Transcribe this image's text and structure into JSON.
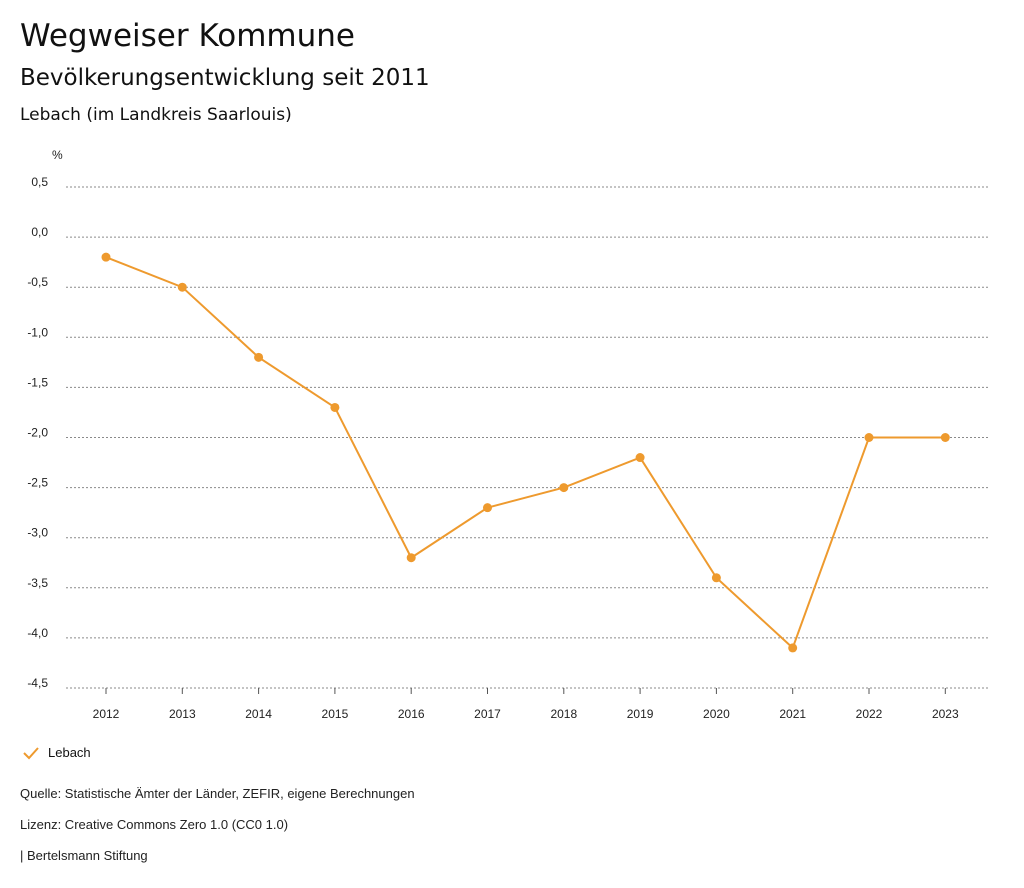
{
  "header": {
    "title": "Wegweiser Kommune",
    "subtitle": "Bevölkerungsentwicklung seit 2011",
    "region": "Lebach (im Landkreis Saarlouis)"
  },
  "legend": {
    "label": "Lebach",
    "color": "#ee9a2e"
  },
  "footer": {
    "source": "Quelle: Statistische Ämter der Länder, ZEFIR, eigene Berechnungen",
    "license": "Lizenz: Creative Commons Zero 1.0 (CC0 1.0)",
    "publisher": "| Bertelsmann Stiftung"
  },
  "chart_data": {
    "type": "line",
    "title": "Bevölkerungsentwicklung seit 2011",
    "ylabel": "%",
    "xlabel": "",
    "categories": [
      "2012",
      "2013",
      "2014",
      "2015",
      "2016",
      "2017",
      "2018",
      "2019",
      "2020",
      "2021",
      "2022",
      "2023"
    ],
    "series": [
      {
        "name": "Lebach",
        "values": [
          -0.2,
          -0.5,
          -1.2,
          -1.7,
          -3.2,
          -2.7,
          -2.5,
          -2.2,
          -3.4,
          -4.1,
          -2.0,
          -2.0
        ]
      }
    ],
    "ylim": [
      -4.5,
      0.5
    ],
    "yticks": [
      0.5,
      0.0,
      -0.5,
      -1.0,
      -1.5,
      -2.0,
      -2.5,
      -3.0,
      -3.5,
      -4.0,
      -4.5
    ],
    "ytick_labels": [
      "0,5",
      "0,0",
      "-0,5",
      "-1,0",
      "-1,5",
      "-2,0",
      "-2,5",
      "-3,0",
      "-3,5",
      "-4,0",
      "-4,5"
    ],
    "grid": true,
    "legend_position": "bottom-left",
    "line_color": "#ee9a2e"
  }
}
